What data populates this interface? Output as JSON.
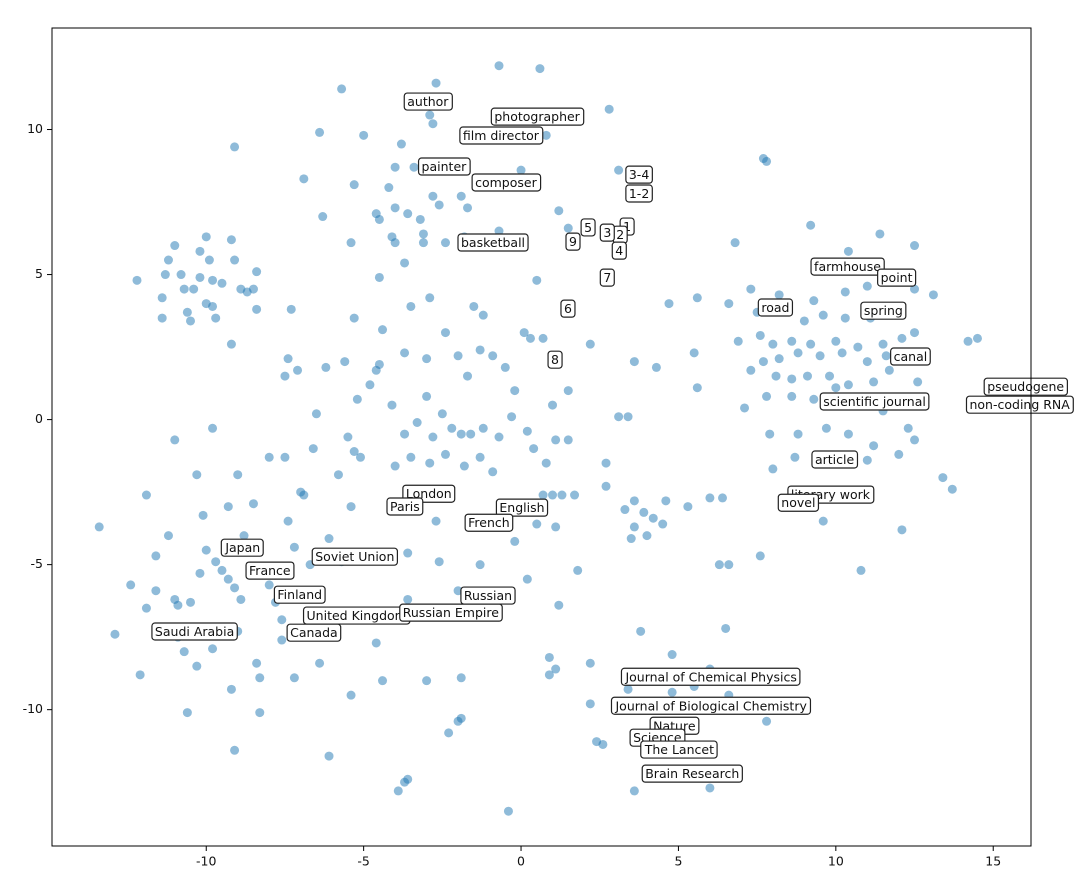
{
  "chart_data": {
    "type": "scatter",
    "color": "#1f77b4",
    "x": [
      -12.2,
      -11,
      -11.2,
      -11.3,
      -11.4,
      -11.4,
      -10.6,
      -10.5,
      -10.7,
      -10.4,
      -10.2,
      -10,
      -10.2,
      -9.9,
      -9.8,
      -10,
      -9.8,
      -9.7,
      -9.5,
      -9.2,
      -9.1,
      -8.9,
      -8.7,
      -8.5,
      -8.4,
      -8.4,
      -9.2,
      -10.8,
      -9.1,
      -5.7,
      -2.7,
      -2.9,
      -2.8,
      -6.4,
      -5,
      -3.8,
      -1.5,
      -0.7,
      0.6,
      0.8,
      2.8,
      -6.9,
      -5.3,
      -4.2,
      -4,
      -3.4,
      -2.8,
      -2.6,
      -1.9,
      -1.7,
      0,
      -4.6,
      -4.5,
      -4,
      -3.6,
      -3.2,
      -3.1,
      -3.1,
      -4.1,
      -4,
      -5.4,
      -6.3,
      -3.7,
      -4.5,
      -2.4,
      -1.8,
      1.2,
      1.5,
      3.1,
      0.5,
      -0.7,
      -7.3,
      -5.3,
      -4.4,
      -2.9,
      -3.5,
      -1.5,
      -1.2,
      4.7,
      5.6,
      6.8,
      9.2,
      10.4,
      11.4,
      12.5,
      7.7,
      7.8,
      7.3,
      8.2,
      9.3,
      10.3,
      11,
      12.5,
      13.1,
      6.6,
      7.5,
      9,
      9.6,
      10.3,
      11.1,
      12.5,
      6.9,
      7.6,
      8,
      8.6,
      9.2,
      10,
      10.7,
      11.5,
      12.1,
      7.3,
      7.7,
      8.2,
      8.8,
      9.5,
      10.2,
      11,
      11.6,
      8.1,
      8.6,
      9.1,
      9.8,
      10.4,
      11.2,
      11.7,
      12.6,
      14.2,
      14.5,
      7.1,
      7.8,
      8.6,
      9.3,
      10,
      10.7,
      11.5,
      12.3,
      12.5,
      7.9,
      8.8,
      9.7,
      10.4,
      11.2,
      8,
      8.7,
      9.5,
      11,
      12,
      13.4,
      13.7,
      9.6,
      12.1,
      10.8,
      7.6,
      6.6,
      6,
      5.6,
      5.5,
      4.3,
      3.6,
      3.1,
      3.4,
      2.7,
      -3,
      -2.5,
      -2.2,
      -1.9,
      -1.6,
      -1.2,
      -0.7,
      -0.3,
      0.2,
      -2.8,
      -3.3,
      -3.7,
      -2.4,
      -1.8,
      -1.3,
      -0.9,
      0.4,
      0.8,
      1.1,
      1.5,
      -4.1,
      -4.8,
      -5.2,
      -4.6,
      -4.5,
      -5.6,
      -6.2,
      -7.1,
      -7.5,
      -7.4,
      -6.5,
      -6.6,
      -7.5,
      -5.5,
      -5.3,
      -5.1,
      -4,
      -3.5,
      -2.9,
      -2,
      -1.3,
      -0.9,
      -0.5,
      -0.2,
      0.3,
      0.7,
      1.5,
      2.2,
      -2.4,
      -3,
      -3.7,
      -1.7,
      0.1,
      1,
      1,
      0.7,
      1.3,
      1.7,
      1.1,
      0.5,
      -0.7,
      -0.2,
      -1.4,
      -2.7,
      -4,
      -5.4,
      -6.9,
      -4.9,
      -3.6,
      -2.6,
      -1.3,
      0.2,
      -2,
      -3.6,
      1.8,
      1.2,
      0.9,
      1.1,
      0.9,
      2.2,
      2.2,
      2.4,
      2.6,
      -1.9,
      -2,
      -2.3,
      -1.9,
      -3,
      -3.7,
      -3.6,
      -3.9,
      -0.4,
      -6.1,
      -9.1,
      3.6,
      6,
      4.8,
      3.8,
      3.4,
      4.8,
      5.5,
      6,
      6.6,
      7.4,
      7.8,
      6.5,
      6.3,
      2.7,
      3.6,
      3.3,
      3.6,
      3.9,
      4.2,
      4.5,
      4.6,
      4,
      3.5,
      5.3,
      6.4,
      -13.4,
      -12.9,
      -12.4,
      -12.1,
      -11.9,
      -11.6,
      -11.6,
      -11.2,
      -11,
      -10.9,
      -10.9,
      -10.7,
      -10.5,
      -10.3,
      -10.2,
      -10.6,
      -10.1,
      -10,
      -9.7,
      -9.5,
      -9.3,
      -9.1,
      -9,
      -8.9,
      -8.8,
      -8.5,
      -8.2,
      -8,
      -7.8,
      -7.6,
      -7.6,
      -8.4,
      -8.3,
      -8.3,
      -7.2,
      -9.2,
      -9.8,
      -6.4,
      -5.4,
      -4.4,
      -4.6,
      -6.1,
      -6.5,
      -6.7,
      -5.7,
      -7.2,
      -7.4,
      -8.5,
      -9,
      -9.3,
      -10.3,
      -11.9,
      -11,
      -9.8,
      -8,
      -7,
      -5.8,
      -6.1
    ],
    "values": [
      4.8,
      6,
      5.5,
      5,
      4.2,
      3.5,
      3.7,
      3.4,
      4.5,
      4.5,
      4.9,
      6.3,
      5.8,
      5.5,
      4.8,
      4,
      3.9,
      3.5,
      4.7,
      6.2,
      5.5,
      4.5,
      4.4,
      4.5,
      5.1,
      3.8,
      2.6,
      5,
      9.4,
      11.4,
      11.6,
      10.5,
      10.2,
      9.9,
      9.8,
      9.5,
      9.7,
      12.2,
      12.1,
      9.8,
      10.7,
      8.3,
      8.1,
      8,
      8.7,
      8.7,
      7.7,
      7.4,
      7.7,
      7.3,
      8.6,
      7.1,
      6.9,
      7.3,
      7.1,
      6.9,
      6.4,
      6.1,
      6.3,
      6.1,
      6.1,
      7,
      5.4,
      4.9,
      6.1,
      6.3,
      7.2,
      6.6,
      8.6,
      4.8,
      6.5,
      3.8,
      3.5,
      3.1,
      4.2,
      3.9,
      3.9,
      3.6,
      4,
      4.2,
      6.1,
      6.7,
      5.8,
      6.4,
      6,
      9,
      8.9,
      4.5,
      4.3,
      4.1,
      4.4,
      4.6,
      4.5,
      4.3,
      4,
      3.7,
      3.4,
      3.6,
      3.5,
      3.5,
      3,
      2.7,
      2.9,
      2.6,
      2.7,
      2.6,
      2.7,
      2.5,
      2.6,
      2.8,
      1.7,
      2,
      2.1,
      2.3,
      2.2,
      2.3,
      2,
      2.2,
      1.5,
      1.4,
      1.5,
      1.5,
      1.2,
      1.3,
      1.7,
      1.3,
      2.7,
      2.8,
      0.4,
      0.8,
      0.8,
      0.7,
      1.1,
      0.5,
      0.3,
      -0.3,
      -0.7,
      -0.5,
      -0.5,
      -0.3,
      -0.5,
      -0.9,
      -1.7,
      -1.3,
      -1.3,
      -1.4,
      -1.2,
      -2,
      -2.4,
      -3.5,
      -3.8,
      -5.2,
      -4.7,
      -5,
      -2.7,
      1.1,
      2.3,
      1.8,
      2,
      0.1,
      0.1,
      -1.5,
      0.8,
      0.2,
      -0.3,
      -0.5,
      -0.5,
      -0.3,
      -0.6,
      0.1,
      -0.4,
      -0.6,
      -0.1,
      -0.5,
      -1.2,
      -1.6,
      -1.3,
      -1.8,
      -1,
      -1.5,
      -0.7,
      -0.7,
      0.5,
      1.2,
      0.7,
      1.7,
      1.9,
      2,
      1.8,
      1.7,
      1.5,
      2.1,
      0.2,
      -1,
      -1.3,
      -0.6,
      -1.1,
      -1.3,
      -1.6,
      -1.3,
      -1.5,
      2.2,
      2.4,
      2.2,
      1.8,
      1,
      2.8,
      2.8,
      1,
      2.6,
      3,
      2.1,
      2.3,
      1.5,
      3,
      0.5,
      -2.6,
      -2.6,
      -2.6,
      -2.6,
      -3.7,
      -3.6,
      -3.7,
      -4.2,
      -3.4,
      -3.5,
      -3.1,
      -3,
      -2.6,
      -4.8,
      -4.6,
      -4.9,
      -5,
      -5.5,
      -5.9,
      -6.2,
      -5.2,
      -6.4,
      -8.2,
      -8.6,
      -8.8,
      -8.4,
      -9.8,
      -11.1,
      -11.2,
      -10.3,
      -10.4,
      -10.8,
      -8.9,
      -9,
      -12.5,
      -12.4,
      -12.8,
      -13.5,
      -11.6,
      -11.4,
      -12.8,
      -12.7,
      -8.1,
      -7.3,
      -9.3,
      -9.4,
      -9.2,
      -8.6,
      -9.5,
      -8.9,
      -10.4,
      -7.2,
      -5,
      -2.3,
      -2.8,
      -3.1,
      -3.7,
      -3.2,
      -3.4,
      -3.6,
      -2.8,
      -4,
      -4.1,
      -3,
      -2.7,
      -3.7,
      -7.4,
      -5.7,
      -8.8,
      -6.5,
      -4.7,
      -5.9,
      -4,
      -6.2,
      -6.4,
      -7.5,
      -8,
      -6.3,
      -8.5,
      -5.3,
      -10.1,
      -3.3,
      -4.5,
      -4.9,
      -5.2,
      -5.5,
      -5.8,
      -7.3,
      -6.2,
      -4,
      -4.3,
      -5.3,
      -5.7,
      -6.3,
      -6.9,
      -7.6,
      -8.4,
      -8.9,
      -10.1,
      -8.9,
      -9.3,
      -7.9,
      -8.4,
      -9.5,
      -9,
      -7.7,
      -7.3,
      -5.9,
      -5,
      -4.9,
      -4.4,
      -3.5,
      -2.9,
      -1.9,
      -3,
      -1.9,
      -2.6,
      -0.7,
      -0.3,
      -1.3,
      -2.5,
      -1.9,
      -4.1
    ],
    "xlim": [
      -14.9,
      16.2
    ],
    "ylim": [
      -14.7,
      13.5
    ],
    "xticks": [
      -10,
      -5,
      0,
      5,
      10,
      15
    ],
    "yticks": [
      -10,
      -5,
      0,
      5,
      10
    ],
    "annotations": [
      {
        "text": "author",
        "x": -2.96,
        "y": 10.93
      },
      {
        "text": "photographer",
        "x": 0.51,
        "y": 10.41
      },
      {
        "text": "film director",
        "x": -0.64,
        "y": 9.76
      },
      {
        "text": "painter",
        "x": -2.45,
        "y": 8.69
      },
      {
        "text": "composer",
        "x": -0.48,
        "y": 8.14
      },
      {
        "text": "basketball",
        "x": -0.89,
        "y": 6.07
      },
      {
        "text": "3-4",
        "x": 3.75,
        "y": 8.41
      },
      {
        "text": "1-2",
        "x": 3.75,
        "y": 7.76
      },
      {
        "text": "1",
        "x": 3.37,
        "y": 6.62
      },
      {
        "text": "2",
        "x": 3.15,
        "y": 6.34
      },
      {
        "text": "3",
        "x": 2.74,
        "y": 6.41
      },
      {
        "text": "5",
        "x": 2.13,
        "y": 6.59
      },
      {
        "text": "9",
        "x": 1.65,
        "y": 6.1
      },
      {
        "text": "4",
        "x": 3.12,
        "y": 5.79
      },
      {
        "text": "7",
        "x": 2.74,
        "y": 4.86
      },
      {
        "text": "6",
        "x": 1.49,
        "y": 3.79
      },
      {
        "text": "8",
        "x": 1.08,
        "y": 2.03
      },
      {
        "text": "farmhouse",
        "x": 10.37,
        "y": 5.24
      },
      {
        "text": "point",
        "x": 11.93,
        "y": 4.86
      },
      {
        "text": "road",
        "x": 8.08,
        "y": 3.83
      },
      {
        "text": "spring",
        "x": 11.51,
        "y": 3.72
      },
      {
        "text": "canal",
        "x": 12.37,
        "y": 2.14
      },
      {
        "text": "pseudogene",
        "x": 16.03,
        "y": 1.1
      },
      {
        "text": "non-coding RNA",
        "x": 15.84,
        "y": 0.48
      },
      {
        "text": "scientific journal",
        "x": 11.23,
        "y": 0.59
      },
      {
        "text": "article",
        "x": 9.96,
        "y": -1.41
      },
      {
        "text": "literary work",
        "x": 9.83,
        "y": -2.62
      },
      {
        "text": "novel",
        "x": 8.81,
        "y": -2.9
      },
      {
        "text": "London",
        "x": -2.93,
        "y": -2.59
      },
      {
        "text": "Paris",
        "x": -3.69,
        "y": -3.03
      },
      {
        "text": "English",
        "x": 0.03,
        "y": -3.07
      },
      {
        "text": "French",
        "x": -1.02,
        "y": -3.59
      },
      {
        "text": "Japan",
        "x": -8.84,
        "y": -4.45
      },
      {
        "text": "Soviet Union",
        "x": -5.28,
        "y": -4.76
      },
      {
        "text": "France",
        "x": -7.98,
        "y": -5.24
      },
      {
        "text": "Finland",
        "x": -7.03,
        "y": -6.07
      },
      {
        "text": "Russian",
        "x": -1.05,
        "y": -6.1
      },
      {
        "text": "United Kingdom",
        "x": -5.22,
        "y": -6.79
      },
      {
        "text": "Russian Empire",
        "x": -2.23,
        "y": -6.69
      },
      {
        "text": "Saudi Arabia",
        "x": -10.37,
        "y": -7.34
      },
      {
        "text": "Canada",
        "x": -6.58,
        "y": -7.38
      },
      {
        "text": "Journal of Chemical Physics",
        "x": 6.04,
        "y": -8.9
      },
      {
        "text": "Journal of Biological Chemistry",
        "x": 6.04,
        "y": -9.9
      },
      {
        "text": "Nature",
        "x": 4.87,
        "y": -10.59
      },
      {
        "text": "Science",
        "x": 4.33,
        "y": -11.0
      },
      {
        "text": "The Lancet",
        "x": 5.03,
        "y": -11.41
      },
      {
        "text": "Brain Research",
        "x": 5.44,
        "y": -12.24
      }
    ]
  }
}
